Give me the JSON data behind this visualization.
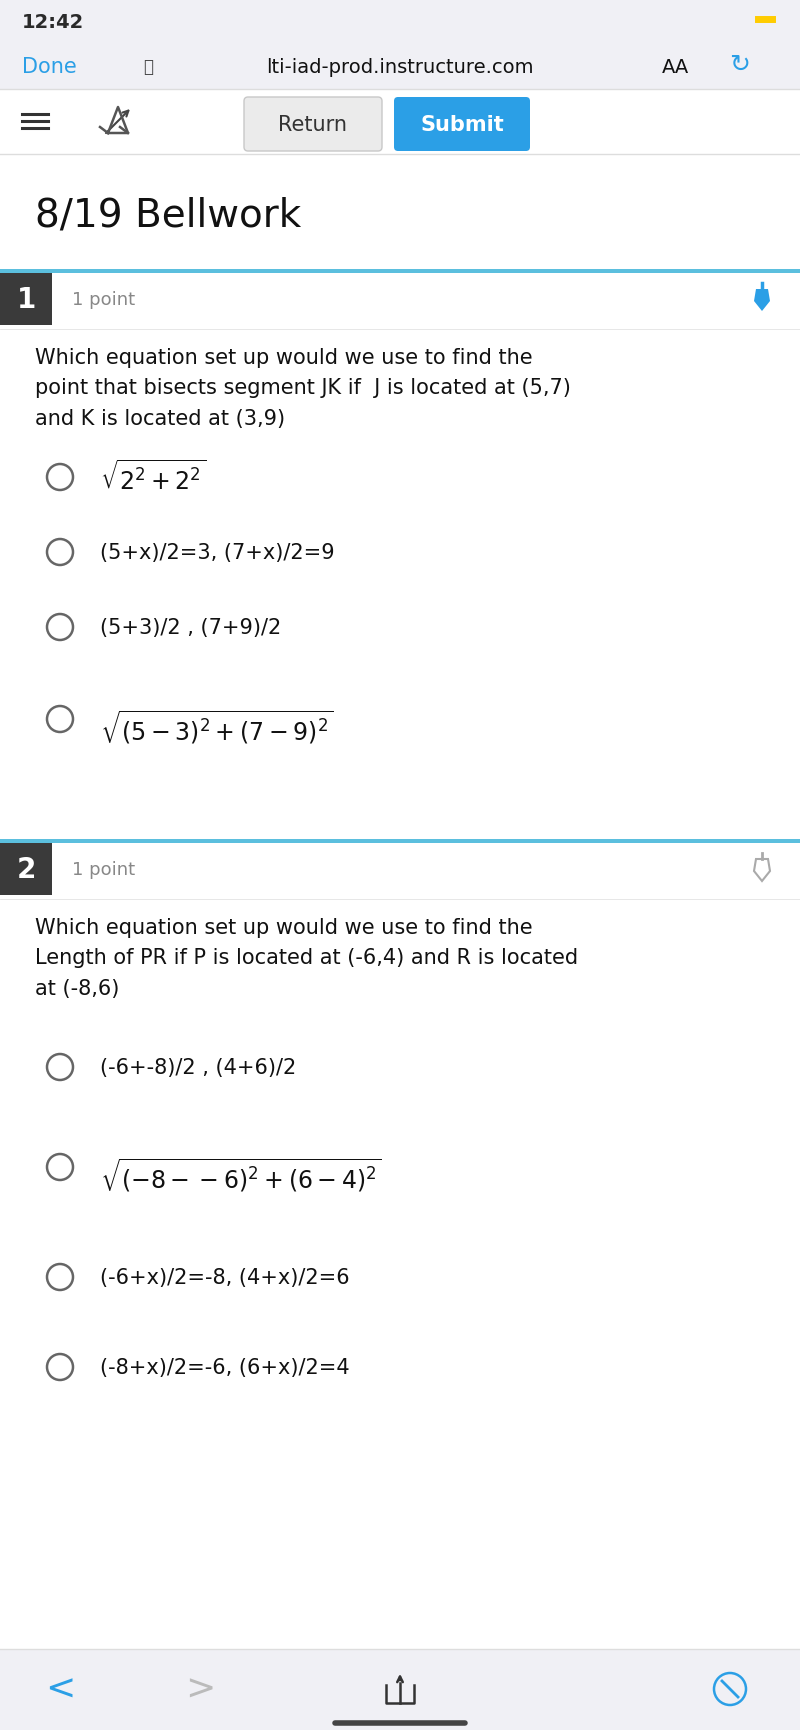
{
  "bg_color": "#f0f0f5",
  "white": "#ffffff",
  "time_text": "12:42",
  "url_text": "lti-iad-prod.instructure.com",
  "done_text": "Done",
  "aa_text": "AA",
  "return_text": "Return",
  "submit_text": "Submit",
  "submit_color": "#2b9fe6",
  "title": "8/19 Bellwork",
  "q1_num": "1",
  "q1_points": "1 point",
  "q1_question": "Which equation set up would we use to find the\npoint that bisects segment JK if  J is located at (5,7)\nand K is located at (3,9)",
  "q2_num": "2",
  "q2_points": "1 point",
  "q2_question": "Which equation set up would we use to find the\nLength of PR if P is located at (-6,4) and R is located\nat (-8,6)",
  "separator_color": "#5bbfde",
  "q_num_bg": "#3a3a3a",
  "pin_blue": "#2b9fe6",
  "pin_gray": "#aaaaaa",
  "toolbar_bg": "#ffffff",
  "section_bg": "#ffffff",
  "bottom_bg": "#f0f0f5",
  "border_color": "#dddddd"
}
